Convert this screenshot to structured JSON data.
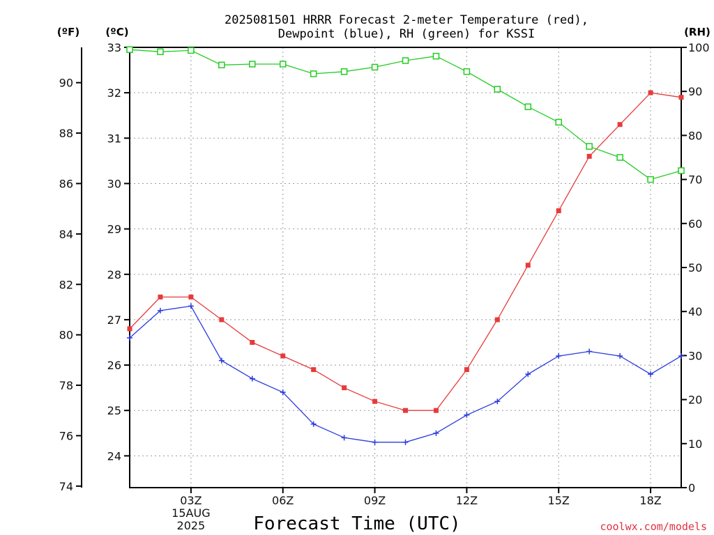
{
  "chart_data": {
    "type": "line",
    "title_lines": [
      "2025081501 HRRR Forecast 2-meter Temperature (red),",
      "Dewpoint (blue), RH (green) for KSSI"
    ],
    "xlabel": "Forecast Time (UTC)",
    "left_outer_unit": "(ºF)",
    "left_inner_unit": "(ºC)",
    "right_unit": "(RH)",
    "credit": "coolwx.com/models",
    "hours": [
      1,
      2,
      3,
      4,
      5,
      6,
      7,
      8,
      9,
      10,
      11,
      12,
      13,
      14,
      15,
      16,
      17,
      18,
      19
    ],
    "x_ticks": [
      {
        "hour": 3,
        "label": "03Z",
        "sub1": "15AUG",
        "sub2": "2025"
      },
      {
        "hour": 6,
        "label": "06Z"
      },
      {
        "hour": 9,
        "label": "09Z"
      },
      {
        "hour": 12,
        "label": "12Z"
      },
      {
        "hour": 15,
        "label": "15Z"
      },
      {
        "hour": 18,
        "label": "18Z"
      }
    ],
    "xlim": [
      1,
      19
    ],
    "celsius_ylim": [
      23.3,
      33.0
    ],
    "celsius_ticks": [
      24,
      25,
      26,
      27,
      28,
      29,
      30,
      31,
      32,
      33
    ],
    "fahrenheit_ticks": [
      74,
      76,
      78,
      80,
      82,
      84,
      86,
      88,
      90
    ],
    "rh_ylim": [
      0,
      100
    ],
    "rh_ticks": [
      0,
      10,
      20,
      30,
      40,
      50,
      60,
      70,
      80,
      90,
      100
    ],
    "series": [
      {
        "key": "temperature",
        "axis": "celsius",
        "color": "#e83a3a",
        "marker": "filled-square",
        "values": [
          26.8,
          27.5,
          27.5,
          27.0,
          26.5,
          26.2,
          25.9,
          25.5,
          25.2,
          25.0,
          25.0,
          25.9,
          27.0,
          28.2,
          29.4,
          30.6,
          31.3,
          32.0,
          31.9
        ]
      },
      {
        "key": "dewpoint",
        "axis": "celsius",
        "color": "#2a3ae0",
        "marker": "plus",
        "values": [
          26.6,
          27.2,
          27.3,
          26.1,
          25.7,
          25.4,
          24.7,
          24.4,
          24.3,
          24.3,
          24.5,
          24.9,
          25.2,
          25.8,
          26.2,
          26.3,
          26.2,
          25.8,
          26.2
        ]
      },
      {
        "key": "rh",
        "axis": "rh",
        "color": "#22cc22",
        "marker": "open-square",
        "values": [
          99.5,
          99,
          99.3,
          96,
          96.2,
          96.2,
          94,
          94.5,
          95.5,
          97,
          98,
          94.5,
          90.5,
          86.5,
          83,
          77.5,
          75,
          70,
          72
        ]
      }
    ]
  }
}
